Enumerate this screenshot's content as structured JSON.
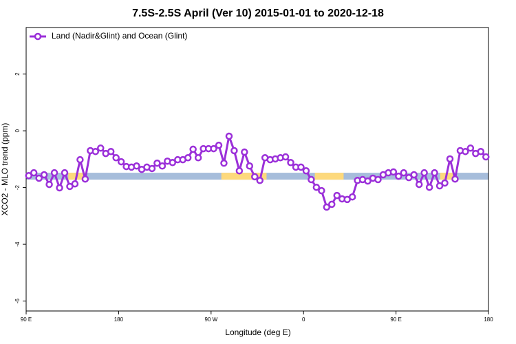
{
  "chart_data": {
    "type": "line",
    "title": "7.5S-2.5S April (Ver 10)   2015-01-01 to 2020-12-18",
    "x_label": "Longitude (deg E)",
    "y_label": "XCO2 - MLO trend (ppm)",
    "xlim": [
      90,
      540
    ],
    "xticks": [
      {
        "value": 90,
        "label": "90 E"
      },
      180,
      {
        "value": 270,
        "label": "90 W"
      },
      {
        "value": 360,
        "label": "0"
      },
      {
        "value": 450,
        "label": "90 E"
      },
      {
        "value": 540,
        "label": "180"
      }
    ],
    "ylim": [
      -6.35,
      3.64
    ],
    "yticks": [
      -6,
      -4,
      -2,
      0,
      2
    ],
    "legend_position": "top-left",
    "band": {
      "y": -1.6,
      "color": "#a6bddb",
      "highlight_color": "#fdd97c",
      "highlights": [
        [
          131,
          148
        ],
        [
          280,
          324
        ],
        [
          371,
          399
        ],
        [
          493,
          506
        ]
      ]
    },
    "x": [
      92.5,
      97.5,
      102.5,
      107.5,
      112.5,
      117.5,
      122.5,
      127.5,
      132.5,
      137.5,
      142.5,
      147.5,
      152.5,
      157.5,
      162.5,
      167.5,
      172.5,
      177.5,
      182.5,
      187.5,
      192.5,
      197.5,
      202.5,
      207.5,
      212.5,
      217.5,
      222.5,
      227.5,
      232.5,
      237.5,
      242.5,
      247.5,
      252.5,
      257.5,
      262.5,
      267.5,
      272.5,
      277.5,
      282.5,
      287.5,
      292.5,
      297.5,
      302.5,
      307.5,
      312.5,
      317.5,
      322.5,
      327.5,
      332.5,
      337.5,
      342.5,
      347.5,
      352.5,
      357.5,
      362.5,
      367.5,
      372.5,
      377.5,
      382.5,
      387.5,
      392.5,
      397.5,
      402.5,
      407.5,
      412.5,
      417.5,
      422.5,
      427.5,
      432.5,
      437.5,
      442.5,
      447.5,
      452.5,
      457.5,
      462.5,
      467.5,
      472.5,
      477.5,
      482.5,
      487.5,
      492.5,
      497.5,
      502.5,
      507.5,
      512.5,
      517.5,
      522.5,
      527.5,
      532.5,
      537.5
    ],
    "series": [
      {
        "name": "Land (Nadir&Glint) and Ocean (Glint)",
        "color": "#9b30d9",
        "values": [
          -1.58,
          -1.48,
          -1.67,
          -1.55,
          -1.89,
          -1.48,
          -2.01,
          -1.48,
          -1.96,
          -1.87,
          -1.02,
          -1.7,
          -0.7,
          -0.73,
          -0.61,
          -0.8,
          -0.73,
          -0.95,
          -1.09,
          -1.26,
          -1.28,
          -1.24,
          -1.36,
          -1.28,
          -1.33,
          -1.14,
          -1.24,
          -1.07,
          -1.12,
          -1.02,
          -1.02,
          -0.95,
          -0.65,
          -0.95,
          -0.63,
          -0.63,
          -0.63,
          -0.51,
          -1.14,
          -0.19,
          -0.7,
          -1.41,
          -0.75,
          -1.24,
          -1.62,
          -1.75,
          -0.95,
          -1.02,
          -0.99,
          -0.95,
          -0.92,
          -1.12,
          -1.28,
          -1.28,
          -1.41,
          -1.72,
          -1.99,
          -2.11,
          -2.69,
          -2.59,
          -2.28,
          -2.4,
          -2.42,
          -2.33,
          -1.75,
          -1.72,
          -1.77,
          -1.67,
          -1.72,
          -1.55,
          -1.48,
          -1.45,
          -1.6,
          -1.48,
          -1.65,
          -1.55,
          -1.89,
          -1.48,
          -1.99,
          -1.48,
          -1.94,
          -1.84,
          -0.99,
          -1.7,
          -0.7,
          -0.73,
          -0.61,
          -0.8,
          -0.73,
          -0.92
        ]
      }
    ]
  }
}
